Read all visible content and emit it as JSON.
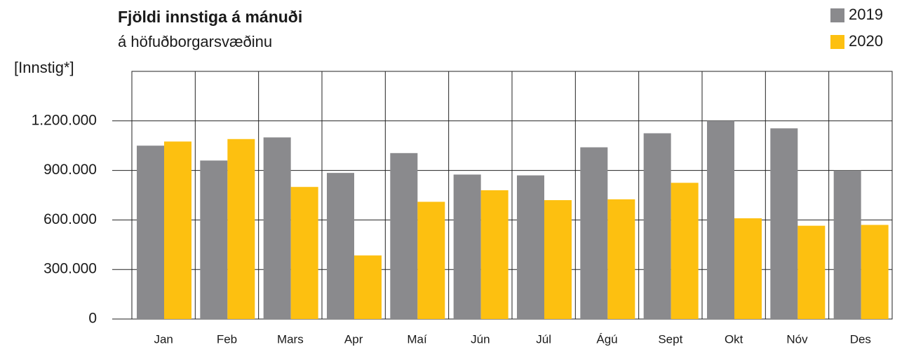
{
  "chart_data": {
    "type": "bar",
    "title": "Fjöldi innstiga á mánuði",
    "subtitle": "á höfuðborgarsvæðinu",
    "y_label": "[Innstig*]",
    "categories": [
      "Jan",
      "Feb",
      "Mars",
      "Apr",
      "Maí",
      "Jún",
      "Júl",
      "Ágú",
      "Sept",
      "Okt",
      "Nóv",
      "Des"
    ],
    "series": [
      {
        "name": "2019",
        "color": "#8a8a8d",
        "values": [
          1050000,
          960000,
          1100000,
          885000,
          1005000,
          875000,
          870000,
          1040000,
          1125000,
          1200000,
          1155000,
          900000
        ]
      },
      {
        "name": "2020",
        "color": "#fdc010",
        "values": [
          1075000,
          1090000,
          800000,
          385000,
          710000,
          780000,
          720000,
          725000,
          825000,
          610000,
          565000,
          570000
        ]
      }
    ],
    "ylim": [
      0,
      1500000
    ],
    "yticks": [
      0,
      {
        "value": 300000,
        "label": "300.000"
      },
      {
        "value": 600000,
        "label": "600.000"
      },
      {
        "value": 900000,
        "label": "900.000"
      },
      {
        "value": 1200000,
        "label": "1.200.000"
      }
    ],
    "grid": true,
    "legend": "top-right"
  }
}
